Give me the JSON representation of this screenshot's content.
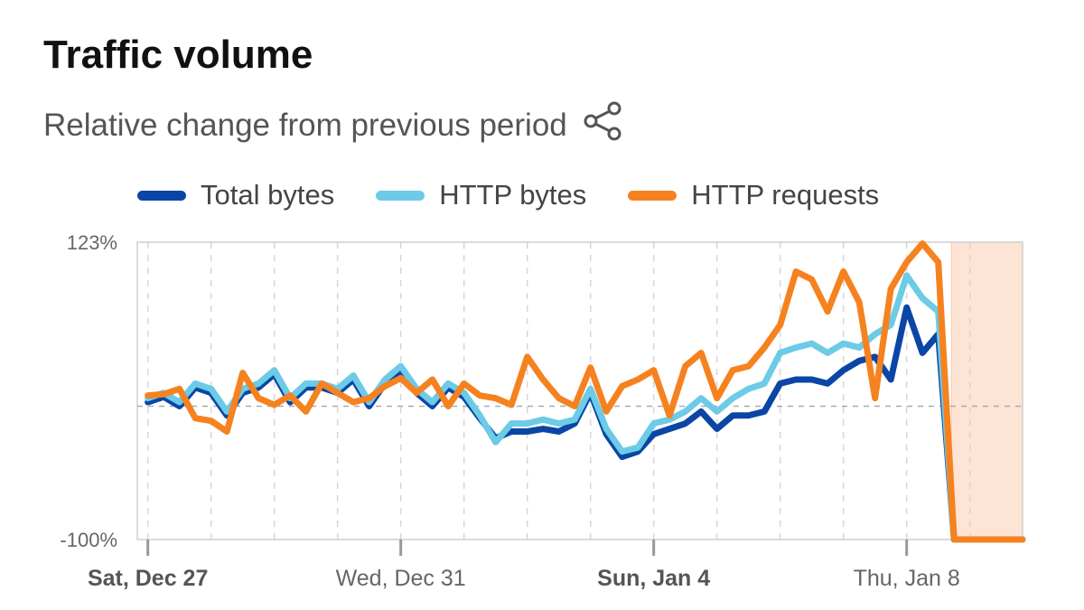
{
  "header": {
    "title": "Traffic volume",
    "subtitle": "Relative change from previous period",
    "share_icon": "share-icon"
  },
  "chart_data": {
    "type": "line",
    "title": "Traffic volume",
    "subtitle": "Relative change from previous period",
    "ylim": [
      -100,
      123
    ],
    "y_ticks": [
      "123%",
      "-100%"
    ],
    "y_unit": "%",
    "reference_line": 0,
    "xlim": [
      "2025-12-26T20:00",
      "2026-01-09T20:00"
    ],
    "x_tick_labels": [
      {
        "label": "Sat, Dec 27",
        "date": "2025-12-27",
        "bold": true
      },
      {
        "label": "Wed, Dec 31",
        "date": "2025-12-31",
        "bold": false
      },
      {
        "label": "Sun, Jan 4",
        "date": "2026-01-04",
        "bold": true
      },
      {
        "label": "Thu, Jan 8",
        "date": "2026-01-08",
        "bold": false
      }
    ],
    "grid": "vertical dashed, daily",
    "legend_position": "top",
    "highlight_region": {
      "start": "2026-01-08T17:00",
      "end": "2026-01-09T20:00",
      "color": "#fde4d4"
    },
    "x_start": "2025-12-27T00:00",
    "x_step_hours": 6,
    "series": [
      {
        "name": "Total bytes",
        "color": "#0b46a6",
        "values": [
          3,
          7,
          0,
          14,
          10,
          -7,
          10,
          14,
          24,
          3,
          14,
          14,
          10,
          20,
          0,
          17,
          27,
          10,
          0,
          14,
          7,
          -9,
          -24,
          -19,
          -19,
          -17,
          -19,
          -13,
          10,
          -21,
          -38,
          -34,
          -21,
          -17,
          -13,
          -4,
          -17,
          -7,
          -7,
          -4,
          17,
          20,
          20,
          17,
          27,
          34,
          37,
          20,
          74,
          40,
          54,
          -100,
          -100,
          -100,
          -100,
          -100
        ]
      },
      {
        "name": "HTTP bytes",
        "color": "#6ccbe6",
        "values": [
          6,
          10,
          3,
          17,
          13,
          -4,
          13,
          17,
          27,
          6,
          17,
          17,
          13,
          23,
          3,
          20,
          30,
          13,
          3,
          17,
          10,
          -7,
          -27,
          -13,
          -13,
          -10,
          -13,
          -10,
          13,
          -17,
          -34,
          -31,
          -13,
          -10,
          -4,
          6,
          -4,
          6,
          13,
          17,
          40,
          44,
          47,
          40,
          47,
          44,
          54,
          61,
          98,
          81,
          71,
          -100,
          -100,
          -100,
          -100,
          -100
        ]
      },
      {
        "name": "HTTP requests",
        "color": "#f5821f",
        "values": [
          8,
          9,
          13,
          -9,
          -11,
          -19,
          25,
          6,
          1,
          8,
          -4,
          17,
          10,
          3,
          6,
          15,
          21,
          10,
          20,
          0,
          17,
          8,
          6,
          1,
          37,
          20,
          6,
          0,
          29,
          -4,
          15,
          20,
          27,
          -7,
          30,
          40,
          6,
          27,
          30,
          44,
          61,
          101,
          95,
          71,
          101,
          78,
          6,
          88,
          108,
          122,
          108,
          -100,
          -100,
          -100,
          -100,
          -100
        ]
      }
    ]
  }
}
